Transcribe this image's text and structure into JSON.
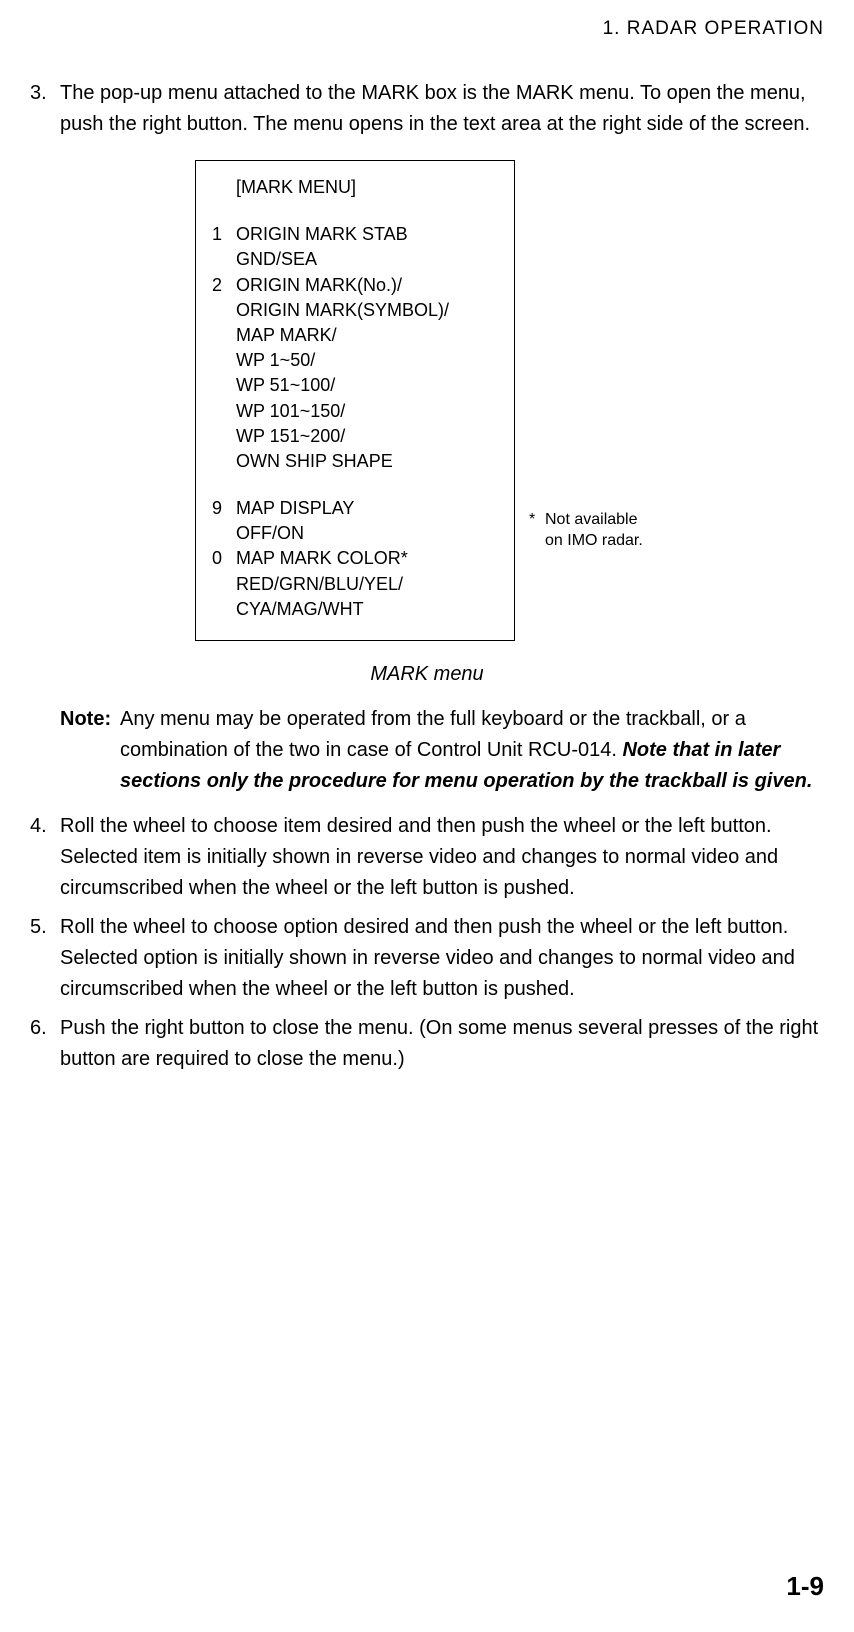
{
  "header": "1.  RADAR  OPERATION",
  "item3": {
    "number": "3.",
    "text": "The pop-up menu attached to the MARK box is the MARK menu. To open the menu, push the right button. The menu opens in the text area at the right side of the screen."
  },
  "menu": {
    "title": "[MARK MENU]",
    "row1_num": "1",
    "row1_label": "ORIGIN MARK STAB",
    "row1_options": "GND/SEA",
    "row2_num": "2",
    "row2_lines": [
      "ORIGIN MARK(No.)/",
      "ORIGIN MARK(SYMBOL)/",
      "MAP MARK/",
      "WP 1~50/",
      "WP 51~100/",
      "WP 101~150/",
      "WP 151~200/",
      "OWN SHIP SHAPE"
    ],
    "row9_num": "9",
    "row9_label": "MAP DISPLAY",
    "row9_options": "OFF/ON",
    "row0_num": "0",
    "row0_label": "MAP MARK COLOR*",
    "row0_options1": "RED/GRN/BLU/YEL/",
    "row0_options2": "CYA/MAG/WHT"
  },
  "footnote": {
    "star": "*",
    "line1": "Not available",
    "line2": "on IMO radar."
  },
  "caption": "MARK menu",
  "note": {
    "label": "Note:",
    "text_plain": "Any menu may be operated from the full keyboard or the trackball, or a combination of the two in case of Control Unit RCU-014. ",
    "text_emphasis": "Note that in later sections only the procedure for menu operation by the trackball is given."
  },
  "item4": {
    "number": "4.",
    "text": "Roll the wheel to choose item desired and then push the wheel or the left button. Selected item is initially shown in reverse video and changes to normal video and circumscribed when the wheel or the left button is pushed."
  },
  "item5": {
    "number": "5.",
    "text": "Roll the wheel to choose option desired and then push the wheel or the left button. Selected option is initially shown in reverse video and changes to normal video and circumscribed when the wheel or the left button is pushed."
  },
  "item6": {
    "number": "6.",
    "text": "Push the right button to close the menu. (On some menus several presses of the right button are required to close the menu.)"
  },
  "pageNumber": "1-9"
}
